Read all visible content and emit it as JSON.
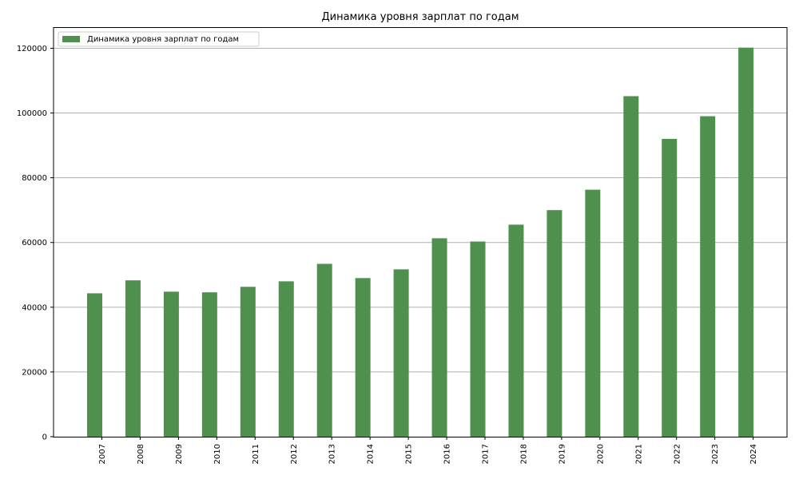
{
  "chart_data": {
    "type": "bar",
    "title": "Динамика уровня зарплат по годам",
    "xlabel": "",
    "ylabel": "",
    "categories": [
      "2007",
      "2008",
      "2009",
      "2010",
      "2011",
      "2012",
      "2013",
      "2014",
      "2015",
      "2016",
      "2017",
      "2018",
      "2019",
      "2020",
      "2021",
      "2022",
      "2023",
      "2024"
    ],
    "series": [
      {
        "name": "Динамика уровня зарплат по годам",
        "color": "#4e914e",
        "values": [
          44300,
          48300,
          44800,
          44600,
          46300,
          48000,
          53400,
          49000,
          51700,
          61300,
          60300,
          65500,
          70000,
          76300,
          105200,
          92000,
          99000,
          120200
        ]
      }
    ],
    "ylim": [
      0,
      126400
    ],
    "yticks": [
      0,
      20000,
      40000,
      60000,
      80000,
      100000,
      120000
    ],
    "ytick_labels": [
      "0",
      "20000",
      "40000",
      "60000",
      "80000",
      "100000",
      "120000"
    ],
    "grid": "y",
    "legend_position": "top-left"
  }
}
